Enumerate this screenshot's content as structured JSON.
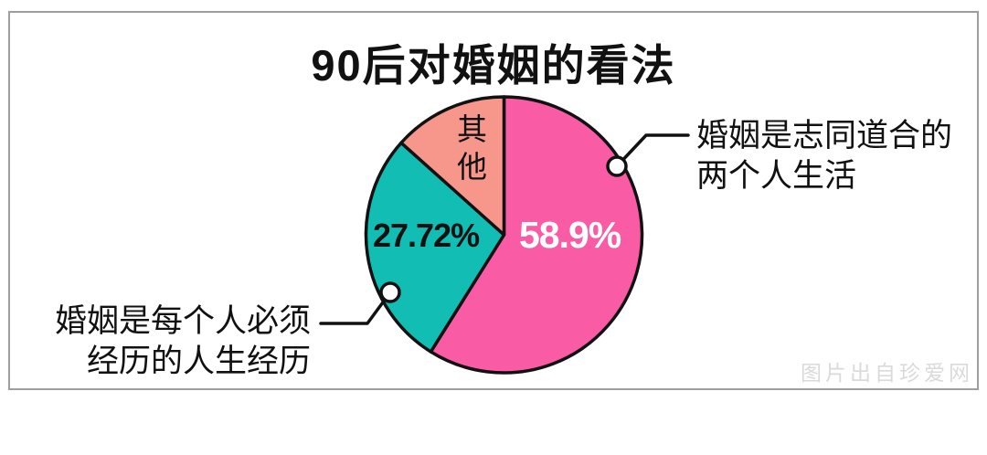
{
  "title": "90后对婚姻的看法",
  "chart_data": {
    "type": "pie",
    "title": "90后对婚姻的看法",
    "start_angle_deg": 0,
    "direction": "clockwise",
    "outline_color": "#111111",
    "slices": [
      {
        "label": "婚姻是志同道合的两个人生活",
        "value": 58.9,
        "value_label": "58.9%",
        "color": "#F95CA5",
        "value_label_color": "#FFFFFF"
      },
      {
        "label": "婚姻是每个人必须经历的人生经历",
        "value": 27.72,
        "value_label": "27.72%",
        "color": "#12BEB3",
        "value_label_color": "#111111"
      },
      {
        "label": "其他",
        "value": 13.38,
        "value_label": "",
        "color": "#F7978C"
      }
    ]
  },
  "callouts": {
    "pink": {
      "lines": [
        "婚姻是志同道合的",
        "两个人生活"
      ]
    },
    "teal": {
      "lines": [
        "婚姻是每个人必须",
        "经历的人生经历"
      ]
    }
  },
  "other_slice_label": "其他",
  "watermark": "图片出自珍爱网",
  "frame_border_color": "#9E9E9E"
}
